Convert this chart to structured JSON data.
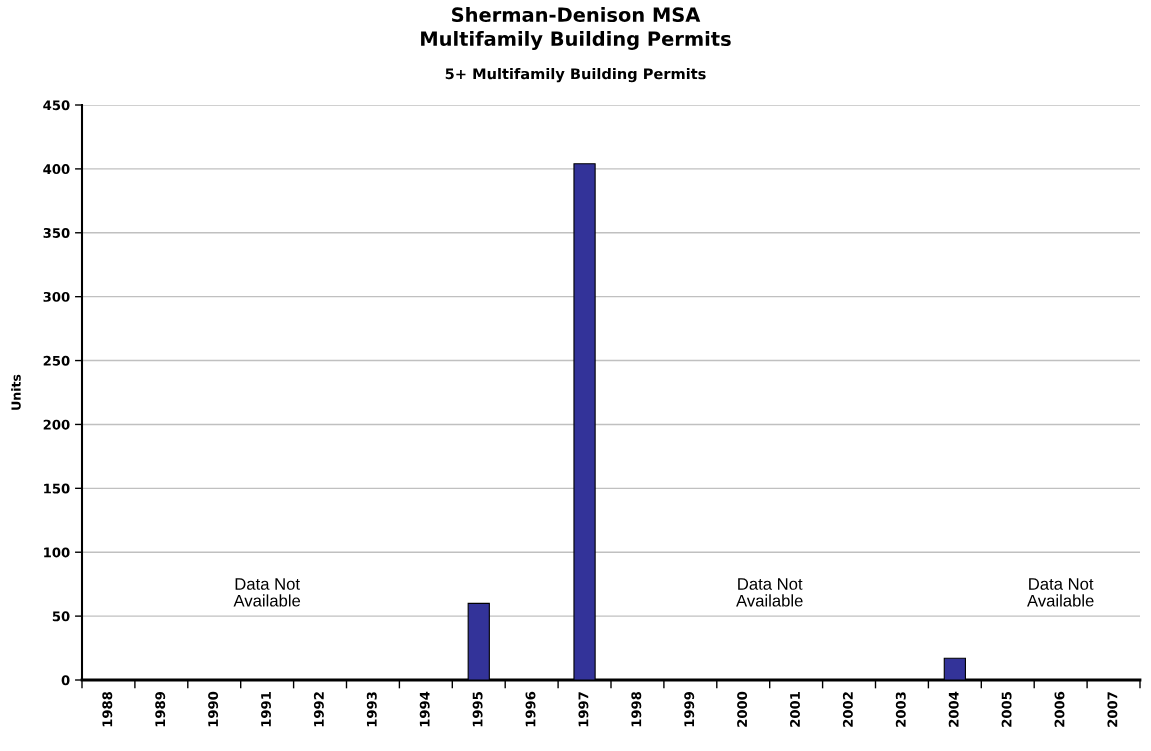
{
  "chart_data": {
    "type": "bar",
    "title": "Sherman-Denison MSA\nMultifamily Building Permits",
    "subtitle": "5+ Multifamily Building Permits",
    "ylabel": "Units",
    "categories": [
      "1988",
      "1989",
      "1990",
      "1991",
      "1992",
      "1993",
      "1994",
      "1995",
      "1996",
      "1997",
      "1998",
      "1999",
      "2000",
      "2001",
      "2002",
      "2003",
      "2004",
      "2005",
      "2006",
      "2007"
    ],
    "values": [
      null,
      null,
      null,
      null,
      null,
      null,
      null,
      60,
      null,
      404,
      null,
      null,
      null,
      null,
      null,
      null,
      17,
      null,
      null,
      null
    ],
    "color": "#333399",
    "ylim": [
      0,
      450
    ],
    "yticks": [
      0,
      50,
      100,
      150,
      200,
      250,
      300,
      350,
      400,
      450
    ],
    "grid": "y",
    "annotations": [
      "Data Not\nAvailable",
      "Data Not\nAvailable",
      "Data Not\nAvailable"
    ]
  }
}
